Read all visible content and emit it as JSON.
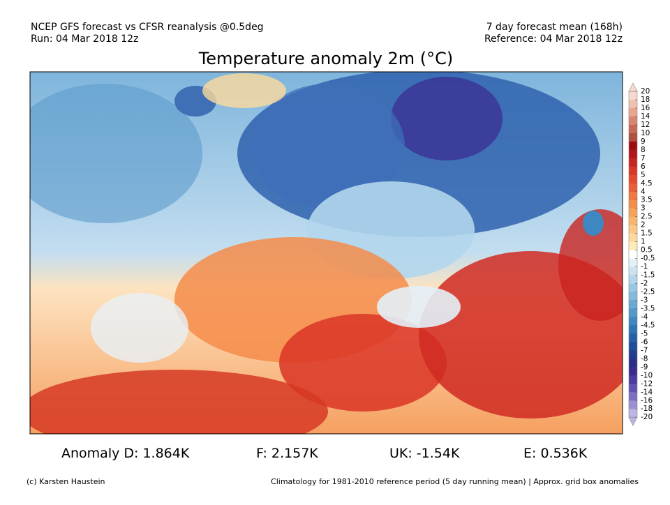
{
  "header": {
    "left": [
      "NCEP GFS forecast vs CFSR reanalysis @0.5deg",
      "Run: 04 Mar 2018 12z"
    ],
    "right": [
      "7 day forecast mean (168h)",
      "Reference: 04 Mar 2018 12z"
    ]
  },
  "title": "Temperature anomaly 2m (°C)",
  "colorbar": {
    "ticks": [
      20,
      18,
      16,
      14,
      12,
      10,
      9,
      8,
      7,
      6,
      5,
      4.5,
      4,
      3.5,
      3,
      2.5,
      2,
      1.5,
      1,
      0.5,
      -0.5,
      -1,
      -1.5,
      -2,
      -2.5,
      -3,
      -3.5,
      -4,
      -4.5,
      -5,
      -6,
      -7,
      -8,
      -9,
      -10,
      -12,
      -14,
      -16,
      -18,
      -20
    ],
    "colors": [
      "#f7d9cf",
      "#f0c0b0",
      "#e9a590",
      "#d98670",
      "#c86a55",
      "#b0503f",
      "#9e0c14",
      "#b3151a",
      "#c9231f",
      "#db3526",
      "#e64a2e",
      "#ec5e35",
      "#f1763f",
      "#f58c4a",
      "#f8a15a",
      "#fab56d",
      "#fcc884",
      "#fdd99c",
      "#feebb8",
      "#ffffff",
      "#e3f0f8",
      "#cce4f2",
      "#b3d6ec",
      "#9ac8e4",
      "#82b9dc",
      "#6aa9d3",
      "#5499ca",
      "#3f87c0",
      "#2e74b5",
      "#2460a8",
      "#1f4c9c",
      "#213c8f",
      "#2b2e88",
      "#3a2a90",
      "#4b3aa0",
      "#6352b3",
      "#7e6ec4",
      "#9c8fd4",
      "#bdb3e4"
    ]
  },
  "stats": [
    "Anomaly D: 1.864K",
    "F: 2.157K",
    "UK: -1.54K",
    "E: 0.536K"
  ],
  "footer": {
    "left": "(c) Karsten Haustein",
    "right": "Climatology for 1981-2010 reference period (5 day running mean) | Approx. grid box anomalies"
  }
}
